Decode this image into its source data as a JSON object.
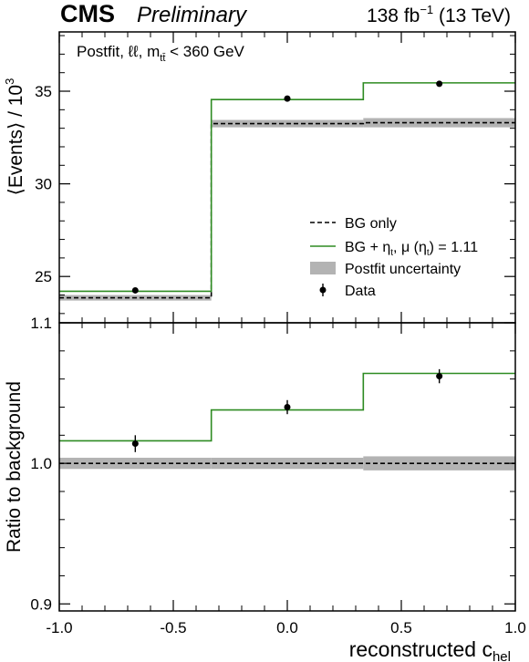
{
  "header": {
    "experiment": "CMS",
    "status": "Preliminary",
    "lumi_label": "138 fb",
    "lumi_exp": "−1",
    "energy_label": " (13 TeV)"
  },
  "chart_data": [
    {
      "type": "line",
      "panel": "upper",
      "annotation": {
        "main": "Postfit, ℓℓ, m",
        "sub": "tt̄",
        "rest": " < 360 GeV"
      },
      "ylabel": "⟨Events⟩ / 10",
      "ylabel_exp": "3",
      "ylim": [
        22.5,
        38.2
      ],
      "yticks": [
        25,
        30,
        35
      ],
      "ytick_labels": [
        "25",
        "30",
        "35"
      ],
      "xlim": [
        -1.0,
        1.0
      ],
      "bin_edges": [
        -1.0,
        -0.3333,
        0.3333,
        1.0
      ],
      "series": [
        {
          "name": "BG only",
          "style": "dashed",
          "color": "#000000",
          "values": [
            23.85,
            33.25,
            33.3
          ]
        },
        {
          "name": "BG + ηt, μ(ηt) = 1.11",
          "style": "step",
          "color": "#2e8b22",
          "values": [
            24.2,
            34.55,
            35.45
          ]
        },
        {
          "name": "Postfit uncertainty",
          "style": "band",
          "color": "#b3b3b3",
          "lower": [
            23.7,
            33.05,
            33.05
          ],
          "upper": [
            24.0,
            33.45,
            33.55
          ]
        },
        {
          "name": "Data",
          "style": "points",
          "color": "#000000",
          "x": [
            -0.6667,
            0.0,
            0.6667
          ],
          "values": [
            24.25,
            34.6,
            35.4
          ],
          "errors": [
            0.08,
            0.1,
            0.1
          ]
        }
      ],
      "legend_location": "right",
      "legend": [
        {
          "label": "BG only",
          "key": "dashed"
        },
        {
          "label": "BG + ",
          "eta": "η",
          "etasub": "t",
          "mid": ", μ (",
          "eta2": "η",
          "etasub2": "t",
          "end": ") = 1.11",
          "key": "green"
        },
        {
          "label": "Postfit uncertainty",
          "key": "band"
        },
        {
          "label": "Data",
          "key": "point"
        }
      ]
    },
    {
      "type": "line",
      "panel": "lower",
      "ylabel": "Ratio to background",
      "ylim": [
        0.895,
        1.1
      ],
      "yticks": [
        0.9,
        1.0,
        1.1
      ],
      "ytick_labels": [
        "0.9",
        "1.0",
        "1.1"
      ],
      "xlim": [
        -1.0,
        1.0
      ],
      "xticks": [
        -1.0,
        -0.5,
        0.0,
        0.5,
        1.0
      ],
      "xtick_labels": [
        "-1.0",
        "-0.5",
        "0.0",
        "0.5",
        "1.0"
      ],
      "xlabel": "reconstructed c",
      "xlabel_sub": "hel",
      "bin_edges": [
        -1.0,
        -0.3333,
        0.3333,
        1.0
      ],
      "series": [
        {
          "name": "BG only",
          "style": "dashed",
          "color": "#000000",
          "values": [
            1.0,
            1.0,
            1.0
          ]
        },
        {
          "name": "BG + ηt",
          "style": "step",
          "color": "#2e8b22",
          "values": [
            1.016,
            1.038,
            1.064
          ]
        },
        {
          "name": "Postfit uncertainty",
          "style": "band",
          "color": "#b3b3b3",
          "lower": [
            0.996,
            0.996,
            0.995
          ],
          "upper": [
            1.004,
            1.004,
            1.005
          ]
        },
        {
          "name": "Data",
          "style": "points",
          "color": "#000000",
          "x": [
            -0.6667,
            0.0,
            0.6667
          ],
          "values": [
            1.014,
            1.04,
            1.062
          ],
          "errors": [
            0.006,
            0.005,
            0.005
          ]
        }
      ]
    }
  ]
}
